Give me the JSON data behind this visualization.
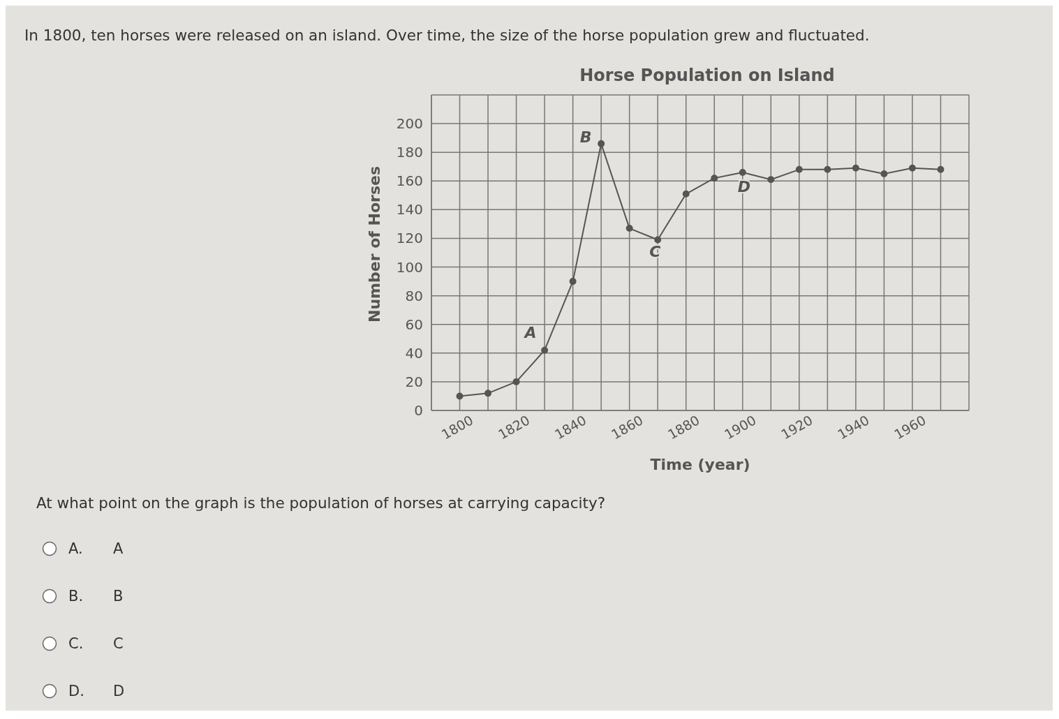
{
  "chart_data": {
    "type": "line",
    "title": "Horse Population on Island",
    "xlabel": "Time (year)",
    "ylabel": "Number of Horses",
    "x": [
      1800,
      1810,
      1820,
      1830,
      1840,
      1850,
      1860,
      1870,
      1880,
      1890,
      1900,
      1910,
      1920,
      1930,
      1940,
      1950,
      1960,
      1970
    ],
    "series": [
      {
        "color": "#555555",
        "values": [
          10,
          12,
          20,
          42,
          90,
          186,
          127,
          119,
          151,
          162,
          166,
          161,
          168,
          168,
          169,
          165,
          169,
          168
        ]
      }
    ],
    "xlim": [
      1790,
      1980
    ],
    "xticks": [
      {
        "value": 1790,
        "label": null
      },
      1800,
      {
        "value": 1810,
        "label": null
      },
      1820,
      {
        "value": 1830,
        "label": null
      },
      1840,
      {
        "value": 1850,
        "label": null
      },
      1860,
      {
        "value": 1870,
        "label": null
      },
      1880,
      {
        "value": 1890,
        "label": null
      },
      1900,
      {
        "value": 1910,
        "label": null
      },
      1920,
      {
        "value": 1930,
        "label": null
      },
      1940,
      {
        "value": 1950,
        "label": null
      },
      1960,
      {
        "value": 1970,
        "label": null
      },
      {
        "value": 1980,
        "label": null
      }
    ],
    "ylim": [
      0,
      220
    ],
    "yticks": [
      0,
      20,
      40,
      60,
      80,
      100,
      120,
      140,
      160,
      180,
      200,
      {
        "value": 220,
        "label": null
      }
    ],
    "grid": true,
    "marker": "circle",
    "line_style": "solid",
    "annotations": [
      "In 1800, ten horses were released on an island. Over time, the size of the horse population grew and fluctuated.",
      "At what point on the graph is the population of horses at carrying capacity?",
      "A.",
      "A",
      "B.",
      "B",
      "C.",
      "C",
      "D.",
      "D",
      {
        "text": "A",
        "x": 1830,
        "y": 42
      },
      {
        "text": "B",
        "x": 1850,
        "y": 186
      },
      {
        "text": "C",
        "x": 1870,
        "y": 119
      },
      {
        "text": "D",
        "x": 1900,
        "y": 166
      }
    ]
  }
}
